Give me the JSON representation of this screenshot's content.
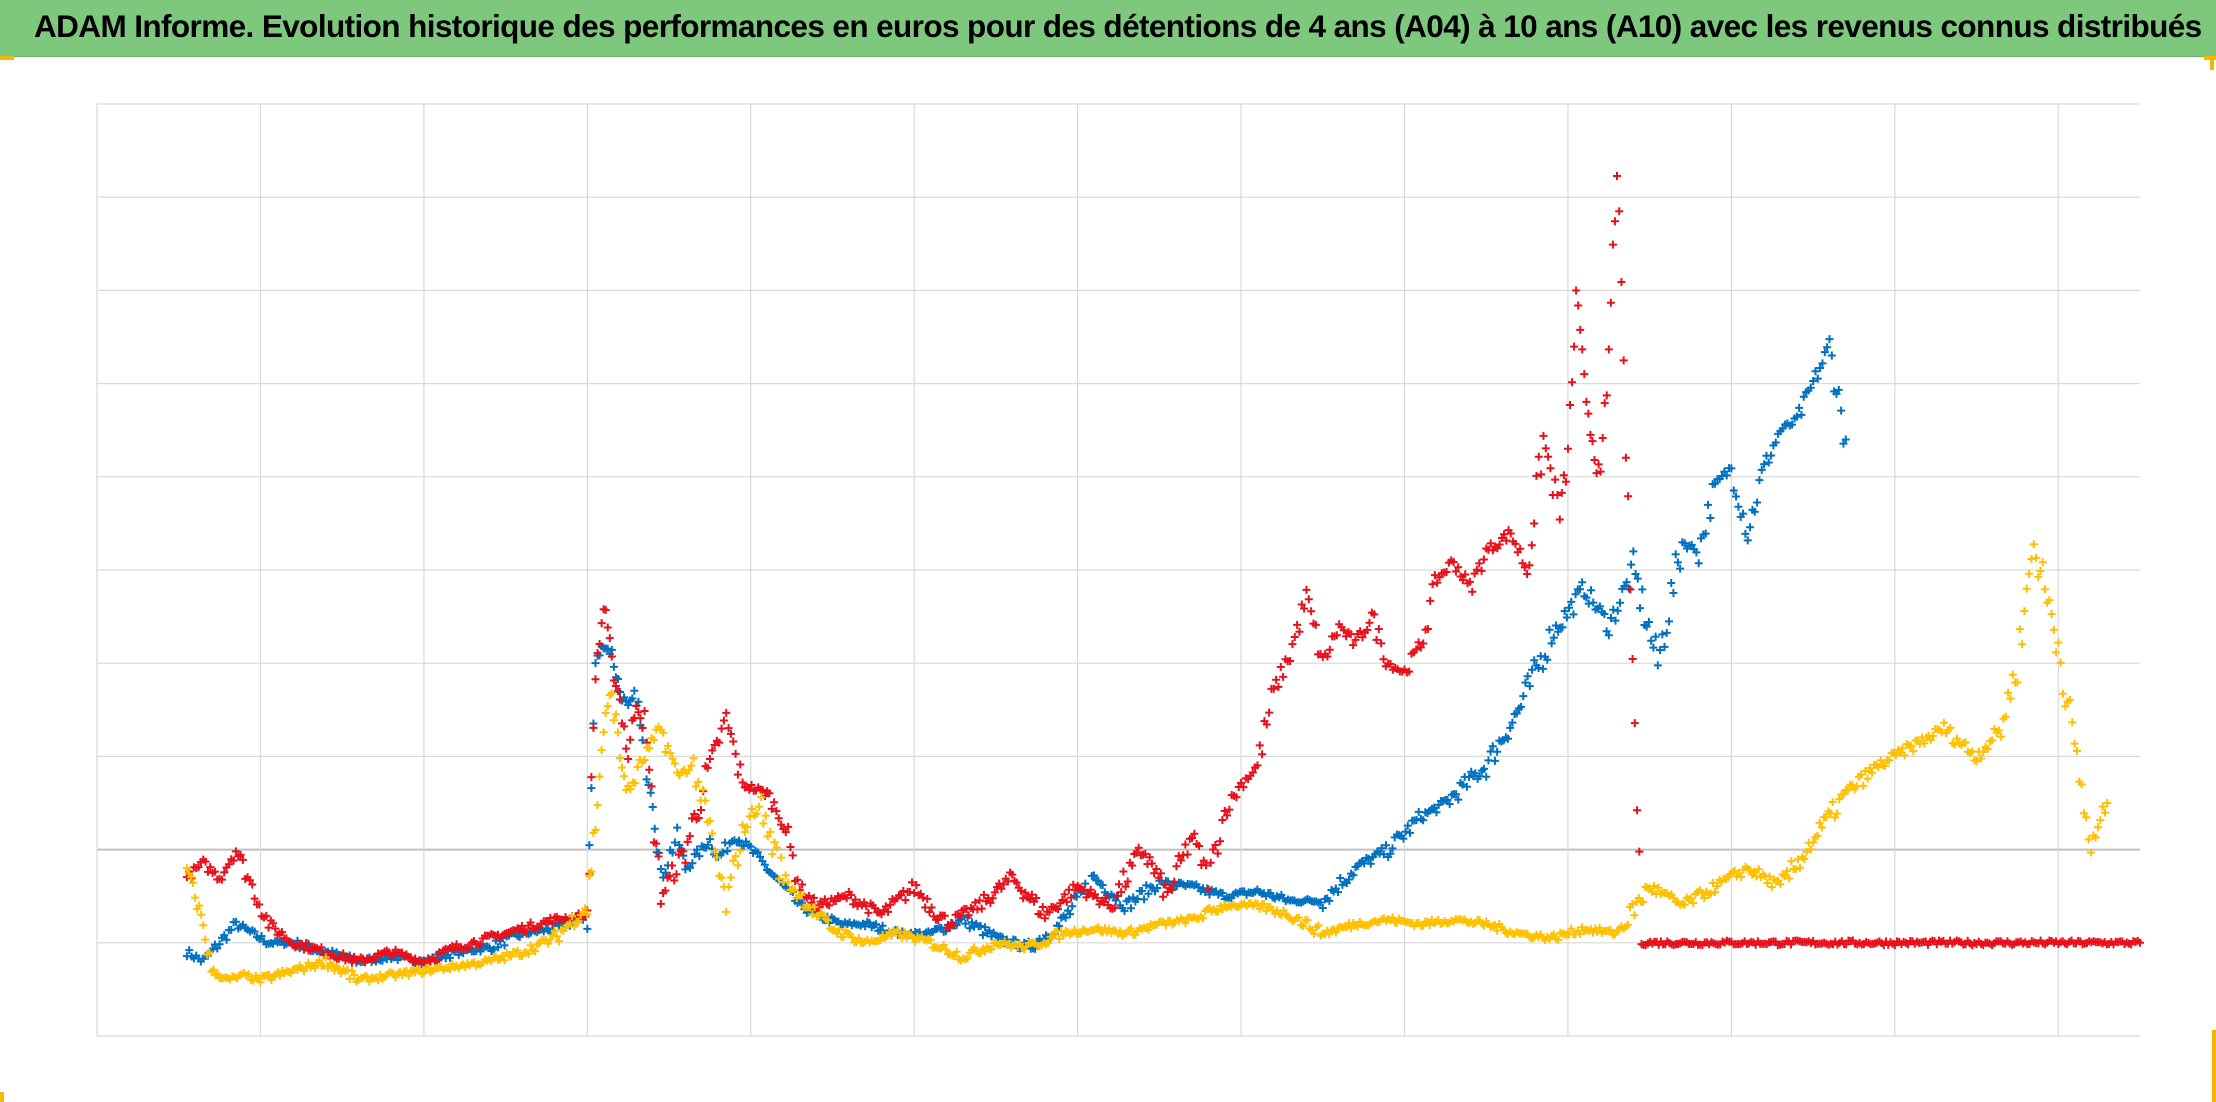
{
  "header": {
    "title": "ADAM Informe. Evolution historique des performances en euros pour des détentions de 4 ans (A04) à 10 ans (A10) avec les revenus connus distribués"
  },
  "colors": {
    "title_background": "#7dc87c",
    "corner_marks": "#f5b800",
    "grid": "#d9d9d9",
    "baseline": "#bfbfbf"
  },
  "chart_data": {
    "type": "scatter",
    "marker": "plus",
    "title": "",
    "xlabel": "",
    "ylabel": "",
    "x_tick_labels": [],
    "y_tick_labels": [],
    "xlim": [
      0,
      12.5
    ],
    "ylim": [
      -2,
      8
    ],
    "x_gridlines": [
      0,
      1,
      2,
      3,
      4,
      5,
      6,
      7,
      8,
      9,
      10,
      11,
      12
    ],
    "y_gridlines": [
      -2,
      -1,
      0,
      1,
      2,
      3,
      4,
      5,
      6,
      7,
      8
    ],
    "grid": true,
    "legend": "none",
    "series": [
      {
        "color": "#0070c0",
        "x": [
          0.55,
          0.65,
          0.75,
          0.85,
          0.95,
          1.05,
          1.2,
          1.4,
          1.6,
          1.8,
          2.0,
          2.2,
          2.4,
          2.6,
          2.8,
          3.0,
          3.05,
          3.1,
          3.15,
          3.2,
          3.25,
          3.3,
          3.35,
          3.4,
          3.45,
          3.55,
          3.6,
          3.7,
          3.75,
          3.8,
          3.9,
          4.0,
          4.1,
          4.2,
          4.3,
          4.4,
          4.55,
          4.7,
          4.9,
          5.1,
          5.3,
          5.5,
          5.7,
          5.9,
          6.1,
          6.3,
          6.5,
          6.7,
          6.9,
          7.1,
          7.3,
          7.5,
          7.7,
          7.9,
          8.1,
          8.25,
          8.5,
          8.7,
          8.9,
          9.1,
          9.25,
          9.4,
          9.55,
          9.7,
          9.8,
          9.9,
          10.0,
          10.1,
          10.2,
          10.3,
          10.4,
          10.5,
          10.6,
          10.7
        ],
        "y": [
          -1.1,
          -1.2,
          -1.0,
          -0.8,
          -0.9,
          -1.0,
          -1.0,
          -1.1,
          -1.2,
          -1.15,
          -1.2,
          -1.1,
          -1.05,
          -0.9,
          -0.85,
          -0.7,
          2.0,
          2.2,
          2.1,
          1.7,
          1.5,
          1.7,
          0.9,
          0.6,
          -0.3,
          0.15,
          -0.2,
          0.0,
          0.1,
          -0.1,
          0.15,
          0.0,
          -0.2,
          -0.4,
          -0.6,
          -0.7,
          -0.8,
          -0.8,
          -0.9,
          -0.9,
          -0.75,
          -0.95,
          -1.05,
          -0.8,
          -0.3,
          -0.6,
          -0.35,
          -0.4,
          -0.5,
          -0.45,
          -0.55,
          -0.55,
          -0.2,
          0.0,
          0.35,
          0.5,
          0.9,
          1.5,
          2.3,
          2.8,
          2.4,
          3.0,
          2.0,
          3.3,
          3.2,
          3.9,
          4.1,
          3.4,
          4.1,
          4.5,
          4.6,
          5.0,
          5.4,
          4.4
        ]
      },
      {
        "color": "#e8101a",
        "x": [
          0.55,
          0.65,
          0.75,
          0.85,
          0.95,
          1.05,
          1.2,
          1.4,
          1.6,
          1.8,
          2.0,
          2.2,
          2.4,
          2.6,
          2.8,
          3.0,
          3.05,
          3.1,
          3.15,
          3.2,
          3.25,
          3.3,
          3.35,
          3.45,
          3.6,
          3.75,
          3.85,
          3.95,
          4.1,
          4.2,
          4.3,
          4.4,
          4.6,
          4.8,
          5.0,
          5.2,
          5.4,
          5.6,
          5.8,
          6.0,
          6.2,
          6.4,
          6.55,
          6.7,
          6.8,
          6.9,
          7.0,
          7.1,
          7.2,
          7.3,
          7.4,
          7.5,
          7.6,
          7.7,
          7.8,
          7.9,
          8.0,
          8.1,
          8.2,
          8.3,
          8.4,
          8.5,
          8.65,
          8.75,
          8.85,
          8.95,
          9.0,
          9.05,
          9.1,
          9.15,
          9.2,
          9.25,
          9.3,
          9.45,
          9.7,
          10.0,
          10.5,
          11.0,
          11.5,
          12.0,
          12.5
        ],
        "y": [
          -0.3,
          -0.15,
          -0.3,
          0.0,
          -0.4,
          -0.8,
          -1.0,
          -1.1,
          -1.2,
          -1.1,
          -1.2,
          -1.05,
          -0.95,
          -0.85,
          -0.75,
          -0.7,
          1.9,
          2.6,
          2.0,
          1.6,
          1.0,
          1.6,
          1.3,
          -0.5,
          0.0,
          0.9,
          1.4,
          0.7,
          0.6,
          0.3,
          -0.4,
          -0.6,
          -0.5,
          -0.7,
          -0.4,
          -0.8,
          -0.6,
          -0.3,
          -0.7,
          -0.4,
          -0.6,
          0.0,
          -0.5,
          0.15,
          -0.3,
          0.4,
          0.7,
          0.9,
          1.7,
          2.1,
          2.7,
          2.0,
          2.4,
          2.2,
          2.5,
          2.0,
          1.9,
          2.2,
          2.9,
          3.1,
          2.8,
          3.2,
          3.4,
          3.0,
          4.4,
          3.6,
          4.2,
          5.9,
          5.0,
          4.4,
          3.9,
          5.3,
          7.4,
          -1.0,
          -1.0,
          -1.0,
          -1.0,
          -1.0,
          -1.0,
          -1.0,
          -1.0
        ]
      },
      {
        "color": "#ffc000",
        "x": [
          0.55,
          0.6,
          0.65,
          0.7,
          0.75,
          0.8,
          0.9,
          1.0,
          1.2,
          1.4,
          1.6,
          1.8,
          2.0,
          2.2,
          2.4,
          2.6,
          2.8,
          3.0,
          3.05,
          3.1,
          3.15,
          3.2,
          3.25,
          3.35,
          3.45,
          3.55,
          3.65,
          3.75,
          3.85,
          3.95,
          4.05,
          4.2,
          4.35,
          4.5,
          4.7,
          4.9,
          5.1,
          5.3,
          5.5,
          5.7,
          5.9,
          6.1,
          6.3,
          6.5,
          6.7,
          6.9,
          7.1,
          7.3,
          7.5,
          7.7,
          7.9,
          8.1,
          8.3,
          8.5,
          8.7,
          8.9,
          9.1,
          9.3,
          9.5,
          9.7,
          9.9,
          10.1,
          10.3,
          10.5,
          10.7,
          10.9,
          11.1,
          11.3,
          11.5,
          11.65,
          11.75,
          11.85,
          12.0,
          12.1,
          12.2,
          12.3
        ],
        "y": [
          -0.2,
          -0.5,
          -0.8,
          -1.3,
          -1.35,
          -1.4,
          -1.35,
          -1.4,
          -1.3,
          -1.2,
          -1.4,
          -1.35,
          -1.3,
          -1.25,
          -1.2,
          -1.1,
          -0.95,
          -0.6,
          0.3,
          1.3,
          1.7,
          1.0,
          0.6,
          1.0,
          1.3,
          0.8,
          0.9,
          0.2,
          -0.6,
          0.2,
          0.5,
          -0.3,
          -0.6,
          -0.85,
          -1.0,
          -0.9,
          -1.0,
          -1.15,
          -1.0,
          -1.05,
          -0.9,
          -0.85,
          -0.9,
          -0.8,
          -0.75,
          -0.6,
          -0.6,
          -0.7,
          -0.9,
          -0.8,
          -0.75,
          -0.8,
          -0.75,
          -0.8,
          -0.9,
          -0.95,
          -0.85,
          -0.9,
          -0.4,
          -0.6,
          -0.4,
          -0.2,
          -0.4,
          0.1,
          0.6,
          0.9,
          1.1,
          1.3,
          1.0,
          1.3,
          2.0,
          3.3,
          2.2,
          1.1,
          0.0,
          0.5
        ]
      }
    ]
  }
}
